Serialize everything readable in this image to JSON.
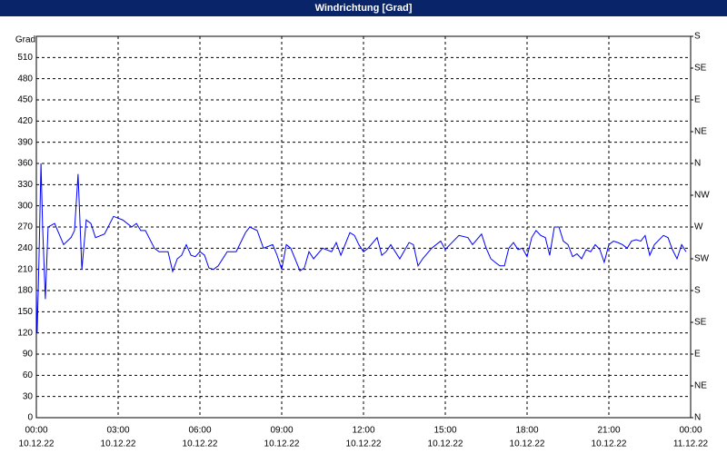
{
  "chart_data": {
    "type": "line",
    "title": "Windrichtung [Grad]",
    "y_label": "Grad",
    "grid": true,
    "xlim": [
      0,
      24
    ],
    "xticks": [
      {
        "value": 0,
        "label": [
          "00:00",
          "10.12.22"
        ]
      },
      {
        "value": 3,
        "label": [
          "03:00",
          "10.12.22"
        ]
      },
      {
        "value": 6,
        "label": [
          "06:00",
          "10.12.22"
        ]
      },
      {
        "value": 9,
        "label": [
          "09:00",
          "10.12.22"
        ]
      },
      {
        "value": 12,
        "label": [
          "12:00",
          "10.12.22"
        ]
      },
      {
        "value": 15,
        "label": [
          "15:00",
          "10.12.22"
        ]
      },
      {
        "value": 18,
        "label": [
          "18:00",
          "10.12.22"
        ]
      },
      {
        "value": 21,
        "label": [
          "21:00",
          "10.12.22"
        ]
      },
      {
        "value": 24,
        "label": [
          "00:00",
          "11.12.22"
        ]
      }
    ],
    "ylim": [
      0,
      540
    ],
    "yticks": [
      0,
      30,
      60,
      90,
      120,
      150,
      180,
      210,
      240,
      270,
      300,
      330,
      360,
      390,
      420,
      450,
      480,
      510
    ],
    "y2lim": [
      0,
      540
    ],
    "y2ticks": [
      {
        "value": 0,
        "label": "N"
      },
      {
        "value": 45,
        "label": "NE"
      },
      {
        "value": 90,
        "label": "E"
      },
      {
        "value": 135,
        "label": "SE"
      },
      {
        "value": 180,
        "label": "S"
      },
      {
        "value": 225,
        "label": "SW"
      },
      {
        "value": 270,
        "label": "W"
      },
      {
        "value": 315,
        "label": "NW"
      },
      {
        "value": 360,
        "label": "N"
      },
      {
        "value": 405,
        "label": "NE"
      },
      {
        "value": 450,
        "label": "E"
      },
      {
        "value": 495,
        "label": "SE"
      },
      {
        "value": 540,
        "label": "S"
      }
    ],
    "x": [
      0,
      0.03,
      0.1,
      0.17,
      0.23,
      0.33,
      0.43,
      0.67,
      1,
      1.27,
      1.4,
      1.53,
      1.67,
      1.83,
      2,
      2.17,
      2.5,
      2.83,
      3.17,
      3.5,
      3.67,
      3.83,
      4,
      4.33,
      4.5,
      4.83,
      5,
      5.17,
      5.33,
      5.5,
      5.67,
      5.83,
      6,
      6.17,
      6.33,
      6.5,
      6.67,
      7,
      7.33,
      7.67,
      7.83,
      8.1,
      8.33,
      8.67,
      8.83,
      9,
      9.17,
      9.33,
      9.67,
      9.83,
      10,
      10.17,
      10.5,
      10.83,
      11,
      11.17,
      11.5,
      11.67,
      11.83,
      12,
      12.17,
      12.5,
      12.67,
      12.83,
      13,
      13.33,
      13.67,
      13.83,
      14,
      14.17,
      14.5,
      14.83,
      15,
      15.17,
      15.5,
      15.83,
      16,
      16.33,
      16.5,
      16.67,
      16.83,
      17,
      17.17,
      17.33,
      17.5,
      17.67,
      17.83,
      18,
      18.17,
      18.33,
      18.5,
      18.67,
      18.83,
      19,
      19.17,
      19.33,
      19.5,
      19.67,
      19.83,
      20,
      20.17,
      20.33,
      20.5,
      20.67,
      20.83,
      21,
      21.17,
      21.33,
      21.5,
      21.67,
      21.83,
      22,
      22.17,
      22.33,
      22.5,
      22.67,
      23,
      23.17,
      23.33,
      23.5,
      23.67,
      23.83
    ],
    "series": [
      {
        "name": "Windrichtung",
        "color": "#0000ff",
        "values": [
          180,
          120,
          230,
          360,
          270,
          168,
          270,
          275,
          245,
          255,
          265,
          345,
          210,
          280,
          275,
          255,
          260,
          285,
          280,
          270,
          275,
          265,
          265,
          240,
          235,
          235,
          207,
          225,
          230,
          245,
          230,
          228,
          235,
          230,
          212,
          210,
          215,
          235,
          235,
          262,
          270,
          265,
          240,
          245,
          230,
          210,
          245,
          240,
          208,
          212,
          235,
          225,
          240,
          235,
          248,
          230,
          262,
          258,
          245,
          235,
          240,
          255,
          230,
          235,
          245,
          225,
          248,
          245,
          215,
          225,
          240,
          250,
          238,
          245,
          258,
          255,
          245,
          260,
          240,
          225,
          220,
          215,
          215,
          240,
          248,
          238,
          240,
          228,
          255,
          265,
          258,
          255,
          230,
          270,
          270,
          250,
          245,
          228,
          232,
          225,
          238,
          235,
          245,
          238,
          220,
          245,
          250,
          248,
          245,
          240,
          250,
          252,
          250,
          258,
          230,
          245,
          258,
          255,
          238,
          225,
          245,
          235
        ]
      }
    ]
  }
}
